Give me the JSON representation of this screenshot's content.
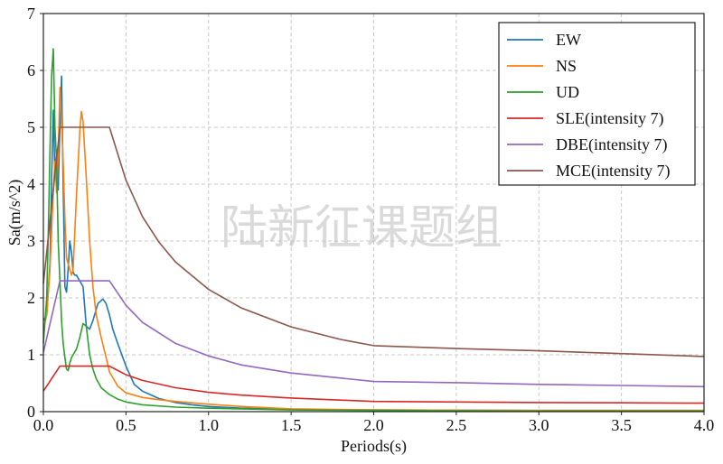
{
  "chart_data": {
    "type": "line",
    "xlabel": "Periods(s)",
    "ylabel": "Sa(m/s^2)",
    "xlim": [
      0.0,
      4.0
    ],
    "ylim": [
      0,
      7
    ],
    "xticks": [
      "0.0",
      "0.5",
      "1.0",
      "1.5",
      "2.0",
      "2.5",
      "3.0",
      "3.5",
      "4.0"
    ],
    "yticks": [
      "0",
      "1",
      "2",
      "3",
      "4",
      "5",
      "6",
      "7"
    ],
    "grid": true,
    "legend_position": "top-right",
    "watermark": "陆新征课题组",
    "series": [
      {
        "name": "EW",
        "color": "#1f77b4",
        "points": [
          [
            0.0,
            1.6
          ],
          [
            0.02,
            1.7
          ],
          [
            0.04,
            2.6
          ],
          [
            0.05,
            4.1
          ],
          [
            0.06,
            5.3
          ],
          [
            0.07,
            4.1
          ],
          [
            0.08,
            4.6
          ],
          [
            0.09,
            3.9
          ],
          [
            0.1,
            5.0
          ],
          [
            0.11,
            5.9
          ],
          [
            0.12,
            4.0
          ],
          [
            0.13,
            2.2
          ],
          [
            0.14,
            2.1
          ],
          [
            0.15,
            2.5
          ],
          [
            0.16,
            3.0
          ],
          [
            0.17,
            2.8
          ],
          [
            0.18,
            2.45
          ],
          [
            0.19,
            2.4
          ],
          [
            0.2,
            2.4
          ],
          [
            0.22,
            2.3
          ],
          [
            0.24,
            2.2
          ],
          [
            0.26,
            1.5
          ],
          [
            0.28,
            1.45
          ],
          [
            0.3,
            1.6
          ],
          [
            0.33,
            1.9
          ],
          [
            0.36,
            1.98
          ],
          [
            0.38,
            1.9
          ],
          [
            0.4,
            1.7
          ],
          [
            0.42,
            1.45
          ],
          [
            0.45,
            1.2
          ],
          [
            0.5,
            0.8
          ],
          [
            0.55,
            0.48
          ],
          [
            0.6,
            0.36
          ],
          [
            0.7,
            0.23
          ],
          [
            0.8,
            0.16
          ],
          [
            0.9,
            0.12
          ],
          [
            1.0,
            0.09
          ],
          [
            1.2,
            0.06
          ],
          [
            1.5,
            0.04
          ],
          [
            2.0,
            0.03
          ],
          [
            3.0,
            0.02
          ],
          [
            4.0,
            0.02
          ]
        ]
      },
      {
        "name": "NS",
        "color": "#ff7f0e",
        "points": [
          [
            0.0,
            1.45
          ],
          [
            0.02,
            1.7
          ],
          [
            0.04,
            2.5
          ],
          [
            0.06,
            3.9
          ],
          [
            0.07,
            4.4
          ],
          [
            0.08,
            3.85
          ],
          [
            0.09,
            4.5
          ],
          [
            0.1,
            5.7
          ],
          [
            0.11,
            5.1
          ],
          [
            0.12,
            4.4
          ],
          [
            0.13,
            3.4
          ],
          [
            0.14,
            2.7
          ],
          [
            0.15,
            2.6
          ],
          [
            0.16,
            2.5
          ],
          [
            0.17,
            2.4
          ],
          [
            0.18,
            2.5
          ],
          [
            0.2,
            3.8
          ],
          [
            0.22,
            4.9
          ],
          [
            0.23,
            5.28
          ],
          [
            0.24,
            5.1
          ],
          [
            0.26,
            4.1
          ],
          [
            0.28,
            3.0
          ],
          [
            0.3,
            2.2
          ],
          [
            0.32,
            1.7
          ],
          [
            0.35,
            1.3
          ],
          [
            0.38,
            0.95
          ],
          [
            0.4,
            0.7
          ],
          [
            0.45,
            0.45
          ],
          [
            0.5,
            0.33
          ],
          [
            0.6,
            0.25
          ],
          [
            0.7,
            0.21
          ],
          [
            0.8,
            0.18
          ],
          [
            1.0,
            0.13
          ],
          [
            1.2,
            0.09
          ],
          [
            1.5,
            0.05
          ],
          [
            2.0,
            0.03
          ],
          [
            3.0,
            0.02
          ],
          [
            4.0,
            0.02
          ]
        ]
      },
      {
        "name": "UD",
        "color": "#2ca02c",
        "points": [
          [
            0.0,
            1.2
          ],
          [
            0.02,
            2.0
          ],
          [
            0.03,
            3.2
          ],
          [
            0.04,
            4.6
          ],
          [
            0.05,
            5.9
          ],
          [
            0.06,
            6.38
          ],
          [
            0.07,
            5.0
          ],
          [
            0.08,
            4.4
          ],
          [
            0.09,
            3.0
          ],
          [
            0.1,
            2.3
          ],
          [
            0.11,
            1.6
          ],
          [
            0.12,
            1.2
          ],
          [
            0.13,
            0.95
          ],
          [
            0.14,
            0.75
          ],
          [
            0.15,
            0.72
          ],
          [
            0.16,
            0.85
          ],
          [
            0.17,
            0.95
          ],
          [
            0.18,
            1.0
          ],
          [
            0.2,
            1.1
          ],
          [
            0.22,
            1.3
          ],
          [
            0.24,
            1.55
          ],
          [
            0.26,
            1.5
          ],
          [
            0.28,
            1.0
          ],
          [
            0.3,
            0.75
          ],
          [
            0.32,
            0.58
          ],
          [
            0.35,
            0.42
          ],
          [
            0.4,
            0.3
          ],
          [
            0.45,
            0.22
          ],
          [
            0.5,
            0.17
          ],
          [
            0.6,
            0.12
          ],
          [
            0.8,
            0.08
          ],
          [
            1.0,
            0.06
          ],
          [
            1.5,
            0.03
          ],
          [
            2.0,
            0.02
          ],
          [
            3.0,
            0.01
          ],
          [
            4.0,
            0.01
          ]
        ]
      },
      {
        "name": "SLE(intensity 7)",
        "color": "#d62728",
        "points": [
          [
            0.0,
            0.36
          ],
          [
            0.1,
            0.8
          ],
          [
            0.4,
            0.8
          ],
          [
            0.5,
            0.65
          ],
          [
            0.6,
            0.55
          ],
          [
            0.8,
            0.42
          ],
          [
            1.0,
            0.34
          ],
          [
            1.2,
            0.29
          ],
          [
            1.5,
            0.24
          ],
          [
            2.0,
            0.18
          ],
          [
            2.5,
            0.17
          ],
          [
            3.0,
            0.16
          ],
          [
            3.5,
            0.155
          ],
          [
            4.0,
            0.15
          ]
        ]
      },
      {
        "name": "DBE(intensity 7)",
        "color": "#9467bd",
        "points": [
          [
            0.0,
            1.04
          ],
          [
            0.1,
            2.3
          ],
          [
            0.4,
            2.3
          ],
          [
            0.5,
            1.87
          ],
          [
            0.6,
            1.57
          ],
          [
            0.8,
            1.2
          ],
          [
            1.0,
            0.98
          ],
          [
            1.2,
            0.82
          ],
          [
            1.5,
            0.68
          ],
          [
            2.0,
            0.53
          ],
          [
            2.5,
            0.51
          ],
          [
            3.0,
            0.48
          ],
          [
            3.5,
            0.46
          ],
          [
            4.0,
            0.44
          ]
        ]
      },
      {
        "name": "MCE(intensity 7)",
        "color": "#8c564b",
        "points": [
          [
            0.0,
            2.25
          ],
          [
            0.1,
            5.0
          ],
          [
            0.4,
            5.0
          ],
          [
            0.5,
            4.07
          ],
          [
            0.6,
            3.43
          ],
          [
            0.7,
            2.98
          ],
          [
            0.8,
            2.63
          ],
          [
            1.0,
            2.15
          ],
          [
            1.2,
            1.82
          ],
          [
            1.5,
            1.49
          ],
          [
            1.8,
            1.27
          ],
          [
            2.0,
            1.16
          ],
          [
            2.5,
            1.11
          ],
          [
            3.0,
            1.07
          ],
          [
            3.5,
            1.02
          ],
          [
            4.0,
            0.97
          ]
        ]
      }
    ]
  }
}
